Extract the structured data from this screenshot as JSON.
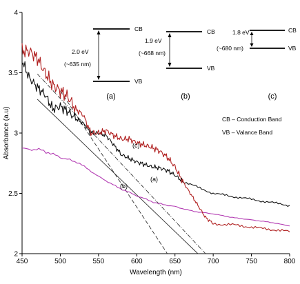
{
  "chart_data": {
    "type": "line",
    "xlabel": "Wavelength (nm)",
    "ylabel": "Absorbance (a.u)",
    "xlim": [
      450,
      800
    ],
    "ylim": [
      2,
      4
    ],
    "xticks": [
      "450",
      "500",
      "550",
      "600",
      "650",
      "700",
      "750",
      "800"
    ],
    "yticks": [
      "2",
      "2.5",
      "3",
      "3.5",
      "4"
    ],
    "series": [
      {
        "name": "(a)",
        "color": "#111111",
        "x": [
          450,
          460,
          470,
          480,
          490,
          500,
          510,
          520,
          530,
          540,
          550,
          560,
          570,
          580,
          590,
          600,
          610,
          620,
          630,
          640,
          650,
          660,
          680,
          700,
          720,
          740,
          760,
          780,
          800
        ],
        "y": [
          3.6,
          3.45,
          3.38,
          3.32,
          3.2,
          3.22,
          3.18,
          3.12,
          3.08,
          3.0,
          3.0,
          2.98,
          2.9,
          2.82,
          2.79,
          2.76,
          2.74,
          2.72,
          2.71,
          2.69,
          2.65,
          2.6,
          2.55,
          2.5,
          2.48,
          2.46,
          2.44,
          2.42,
          2.4
        ]
      },
      {
        "name": "(b)",
        "color": "#b23ab2",
        "x": [
          450,
          475,
          500,
          525,
          550,
          575,
          600,
          625,
          650,
          675,
          700,
          725,
          750,
          775,
          800
        ],
        "y": [
          2.87,
          2.86,
          2.8,
          2.75,
          2.64,
          2.55,
          2.48,
          2.42,
          2.39,
          2.35,
          2.33,
          2.3,
          2.28,
          2.26,
          2.23
        ]
      },
      {
        "name": "(c)",
        "color": "#b02020",
        "x": [
          450,
          460,
          470,
          480,
          490,
          500,
          510,
          520,
          530,
          540,
          550,
          560,
          570,
          580,
          590,
          600,
          610,
          620,
          630,
          640,
          650,
          660,
          670,
          680,
          690,
          700,
          720,
          740,
          760,
          780,
          800
        ],
        "y": [
          3.68,
          3.68,
          3.62,
          3.5,
          3.4,
          3.35,
          3.3,
          3.2,
          3.15,
          3.0,
          3.0,
          3.02,
          2.98,
          2.95,
          2.95,
          2.92,
          2.9,
          2.88,
          2.85,
          2.8,
          2.72,
          2.6,
          2.5,
          2.4,
          2.3,
          2.25,
          2.24,
          2.23,
          2.21,
          2.2,
          2.18
        ]
      }
    ],
    "tangents": [
      {
        "style": "dashed",
        "x": [
          500,
          640
        ],
        "y": [
          3.35,
          2.0
        ]
      },
      {
        "style": "solid",
        "x": [
          470,
          680
        ],
        "y": [
          3.28,
          2.0
        ]
      },
      {
        "style": "dash-dot",
        "x": [
          470,
          690
        ],
        "y": [
          3.49,
          2.0
        ]
      }
    ],
    "annotations": [
      "(a)",
      "(b)",
      "(c)"
    ],
    "band_diagrams": [
      {
        "panel": "(a)",
        "gap": "2.0 eV",
        "wavelength": "(~635 nm)",
        "cb": "CB",
        "vb": "VB"
      },
      {
        "panel": "(b)",
        "gap": "1.9 eV",
        "wavelength": "(~668 nm)",
        "cb": "CB",
        "vb": "VB"
      },
      {
        "panel": "(c)",
        "gap": "1.8 eV",
        "wavelength": "(~680 nm)",
        "cb": "CB",
        "vb": "VB"
      }
    ],
    "legend_notes": [
      "CB – Conduction Band",
      "VB – Valance Band"
    ]
  }
}
